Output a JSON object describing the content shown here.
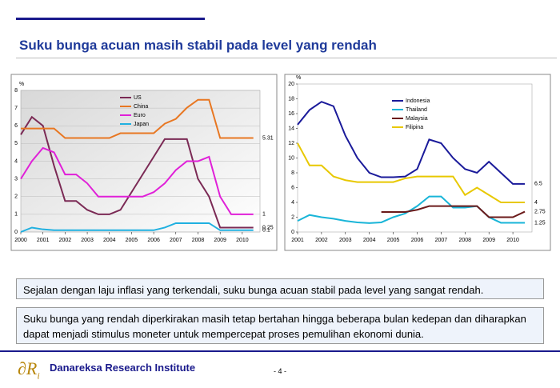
{
  "title": "Suku bunga acuan masih stabil pada level yang rendah",
  "paragraphs": [
    "Sejalan dengan laju inflasi yang terkendali, suku bunga acuan stabil pada level yang sangat rendah.",
    "Suku bunga yang rendah diperkirakan masih tetap bertahan hingga beberapa bulan kedepan dan diharapkan dapat menjadi stimulus moneter untuk mempercepat proses pemulihan ekonomi dunia."
  ],
  "footer": {
    "logo": "∂R",
    "logo_sub": "i",
    "institute": "Danareksa Research Institute",
    "page": "- 4 -"
  },
  "chart_data": [
    {
      "type": "line",
      "y_label": "%",
      "x": [
        2000,
        2000.5,
        2001,
        2001.5,
        2002,
        2002.5,
        2003,
        2003.5,
        2004,
        2004.5,
        2005,
        2005.5,
        2006,
        2006.5,
        2007,
        2007.5,
        2008,
        2008.5,
        2009,
        2009.5,
        2010,
        2010.5
      ],
      "xlim": [
        2000,
        2010.8
      ],
      "xticks": [
        2000,
        2001,
        2002,
        2003,
        2004,
        2005,
        2006,
        2007,
        2008,
        2009,
        2010
      ],
      "ylim": [
        0,
        8
      ],
      "yticks": [
        0,
        1,
        2,
        3,
        4,
        5,
        6,
        7,
        8
      ],
      "grid": true,
      "series": [
        {
          "name": "US",
          "color": "#7b2a55",
          "values": [
            5.5,
            6.5,
            6.0,
            3.75,
            1.75,
            1.75,
            1.25,
            1.0,
            1.0,
            1.25,
            2.25,
            3.25,
            4.25,
            5.25,
            5.25,
            5.25,
            3.0,
            2.0,
            0.25,
            0.25,
            0.25,
            0.25
          ]
        },
        {
          "name": "China",
          "color": "#e87722",
          "values": [
            5.85,
            5.85,
            5.85,
            5.85,
            5.31,
            5.31,
            5.31,
            5.31,
            5.31,
            5.58,
            5.58,
            5.58,
            5.58,
            6.12,
            6.39,
            7.02,
            7.47,
            7.47,
            5.31,
            5.31,
            5.31,
            5.31
          ]
        },
        {
          "name": "Euro",
          "color": "#e020d8",
          "values": [
            3.0,
            4.0,
            4.75,
            4.5,
            3.25,
            3.25,
            2.75,
            2.0,
            2.0,
            2.0,
            2.0,
            2.0,
            2.25,
            2.75,
            3.5,
            4.0,
            4.0,
            4.25,
            2.0,
            1,
            1,
            1
          ]
        },
        {
          "name": "Japan",
          "color": "#20b0e0",
          "values": [
            0,
            0.25,
            0.15,
            0.1,
            0.1,
            0.1,
            0.1,
            0.1,
            0.1,
            0.1,
            0.1,
            0.1,
            0.1,
            0.25,
            0.5,
            0.5,
            0.5,
            0.5,
            0.1,
            0.1,
            0.1,
            0.1
          ]
        }
      ]
    },
    {
      "type": "line",
      "y_label": "%",
      "x": [
        2001,
        2001.5,
        2002,
        2002.5,
        2003,
        2003.5,
        2004,
        2004.5,
        2005,
        2005.5,
        2006,
        2006.5,
        2007,
        2007.5,
        2008,
        2008.5,
        2009,
        2009.5,
        2010,
        2010.5
      ],
      "xlim": [
        2001,
        2010.8
      ],
      "xticks": [
        2001,
        2002,
        2003,
        2004,
        2005,
        2006,
        2007,
        2008,
        2009,
        2010
      ],
      "ylim": [
        0,
        20
      ],
      "yticks": [
        0,
        2,
        4,
        6,
        8,
        10,
        12,
        14,
        16,
        18,
        20
      ],
      "grid": false,
      "series": [
        {
          "name": "Indonesia",
          "color": "#1a1a9a",
          "values": [
            14.5,
            16.5,
            17.6,
            17.0,
            13.0,
            10.0,
            8.0,
            7.4,
            7.4,
            7.5,
            8.5,
            12.5,
            12.0,
            10.0,
            8.5,
            8.0,
            9.5,
            8.0,
            6.5,
            6.5
          ]
        },
        {
          "name": "Thailand",
          "color": "#19b5d8",
          "values": [
            1.5,
            2.3,
            2.0,
            1.8,
            1.5,
            1.3,
            1.2,
            1.3,
            2.0,
            2.5,
            3.5,
            4.8,
            4.8,
            3.3,
            3.3,
            3.5,
            2.0,
            1.25,
            1.25,
            1.25
          ]
        },
        {
          "name": "Malaysia",
          "color": "#6b1a1a",
          "values": [
            null,
            null,
            null,
            null,
            null,
            null,
            null,
            2.7,
            2.7,
            2.7,
            3.0,
            3.5,
            3.5,
            3.5,
            3.5,
            3.5,
            2.0,
            2.0,
            2.0,
            2.75
          ]
        },
        {
          "name": "Filipina",
          "color": "#e8c800",
          "values": [
            12.0,
            9.0,
            9.0,
            7.5,
            7.0,
            6.75,
            6.75,
            6.75,
            6.75,
            7.25,
            7.5,
            7.5,
            7.5,
            7.5,
            5.0,
            6.0,
            5.0,
            4.0,
            4.0,
            4
          ]
        }
      ]
    }
  ]
}
